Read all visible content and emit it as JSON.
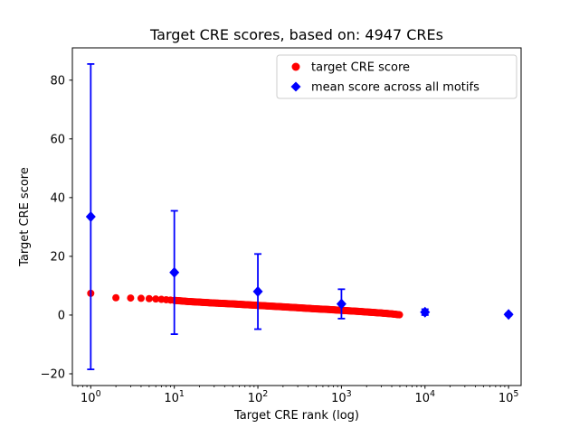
{
  "title": "Target CRE scores, based on: 4947 CREs",
  "chart_data": {
    "type": "scatter",
    "title": "Target CRE scores, based on: 4947 CREs",
    "xlabel": "Target CRE rank (log)",
    "ylabel": "Target CRE score",
    "x_scale": "log",
    "x_tick_exponents": [
      0,
      1,
      2,
      3,
      4,
      5
    ],
    "y_ticks": [
      -20,
      0,
      20,
      40,
      60,
      80
    ],
    "x_domain_log10": [
      -0.22,
      5.15
    ],
    "y_domain": [
      -24,
      91
    ],
    "n_cres": 4947,
    "colors": {
      "target": "#ff0000",
      "mean": "#0000ff",
      "legend_border": "#cccccc",
      "axes": "#000000"
    },
    "legend": [
      {
        "label": "target CRE score",
        "marker": "circle",
        "color": "#ff0000"
      },
      {
        "label": "mean score across all motifs",
        "marker": "diamond",
        "color": "#0000ff"
      }
    ],
    "series": [
      {
        "name": "target CRE score",
        "marker": "circle",
        "color": "#ff0000",
        "note": "dense scatter of 4947 ranked CRE scores, decreasing roughly linearly vs log rank",
        "curve_points": [
          [
            1,
            7.4
          ],
          [
            2,
            5.9
          ],
          [
            3,
            5.8
          ],
          [
            4,
            5.7
          ],
          [
            5,
            5.6
          ],
          [
            7,
            5.35
          ],
          [
            10,
            5.0
          ],
          [
            15,
            4.6
          ],
          [
            20,
            4.4
          ],
          [
            30,
            4.1
          ],
          [
            50,
            3.8
          ],
          [
            70,
            3.55
          ],
          [
            100,
            3.3
          ],
          [
            150,
            3.0
          ],
          [
            200,
            2.8
          ],
          [
            300,
            2.5
          ],
          [
            500,
            2.1
          ],
          [
            700,
            1.9
          ],
          [
            1000,
            1.6
          ],
          [
            1500,
            1.3
          ],
          [
            2000,
            1.05
          ],
          [
            3000,
            0.7
          ],
          [
            4000,
            0.4
          ],
          [
            4947,
            0.1
          ]
        ]
      },
      {
        "name": "mean score across all motifs",
        "marker": "diamond",
        "color": "#0000ff",
        "points": [
          {
            "x": 1,
            "y": 33.5,
            "err": 52
          },
          {
            "x": 10,
            "y": 14.5,
            "err": 21
          },
          {
            "x": 100,
            "y": 8.0,
            "err": 12.8
          },
          {
            "x": 1000,
            "y": 3.8,
            "err": 5
          },
          {
            "x": 10000,
            "y": 1.0,
            "err": 1
          },
          {
            "x": 100000,
            "y": 0.2,
            "err": 0.4
          }
        ]
      }
    ]
  }
}
